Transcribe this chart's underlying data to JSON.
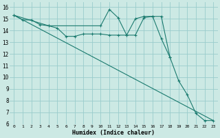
{
  "xlabel": "Humidex (Indice chaleur)",
  "background_color": "#cce9e4",
  "line_color": "#1a7a6e",
  "grid_color": "#99cccc",
  "xlim": [
    -0.5,
    23.5
  ],
  "ylim": [
    6,
    16.4
  ],
  "xticks": [
    0,
    1,
    2,
    3,
    4,
    5,
    6,
    7,
    8,
    9,
    10,
    11,
    12,
    13,
    14,
    15,
    16,
    17,
    18,
    19,
    20,
    21,
    22,
    23
  ],
  "yticks": [
    6,
    7,
    8,
    9,
    10,
    11,
    12,
    13,
    14,
    15,
    16
  ],
  "line1_x": [
    0,
    1,
    2,
    3,
    4,
    5,
    6,
    7,
    8,
    9,
    10,
    11,
    12,
    13,
    14,
    15,
    16,
    17,
    18
  ],
  "line1_y": [
    15.3,
    14.9,
    14.9,
    14.5,
    14.4,
    14.2,
    13.5,
    13.5,
    13.7,
    13.7,
    13.7,
    13.6,
    13.6,
    13.6,
    13.6,
    15.1,
    15.2,
    13.3,
    11.7
  ],
  "line2_x": [
    0,
    4,
    10,
    11,
    12,
    13,
    14,
    15,
    16,
    17,
    18,
    19,
    20,
    21,
    22,
    23
  ],
  "line2_y": [
    15.3,
    14.4,
    14.4,
    15.8,
    15.1,
    13.6,
    15.0,
    15.2,
    15.2,
    15.2,
    11.7,
    9.7,
    8.5,
    6.9,
    6.3,
    6.3
  ],
  "line3_x": [
    0,
    23
  ],
  "line3_y": [
    15.3,
    6.3
  ]
}
